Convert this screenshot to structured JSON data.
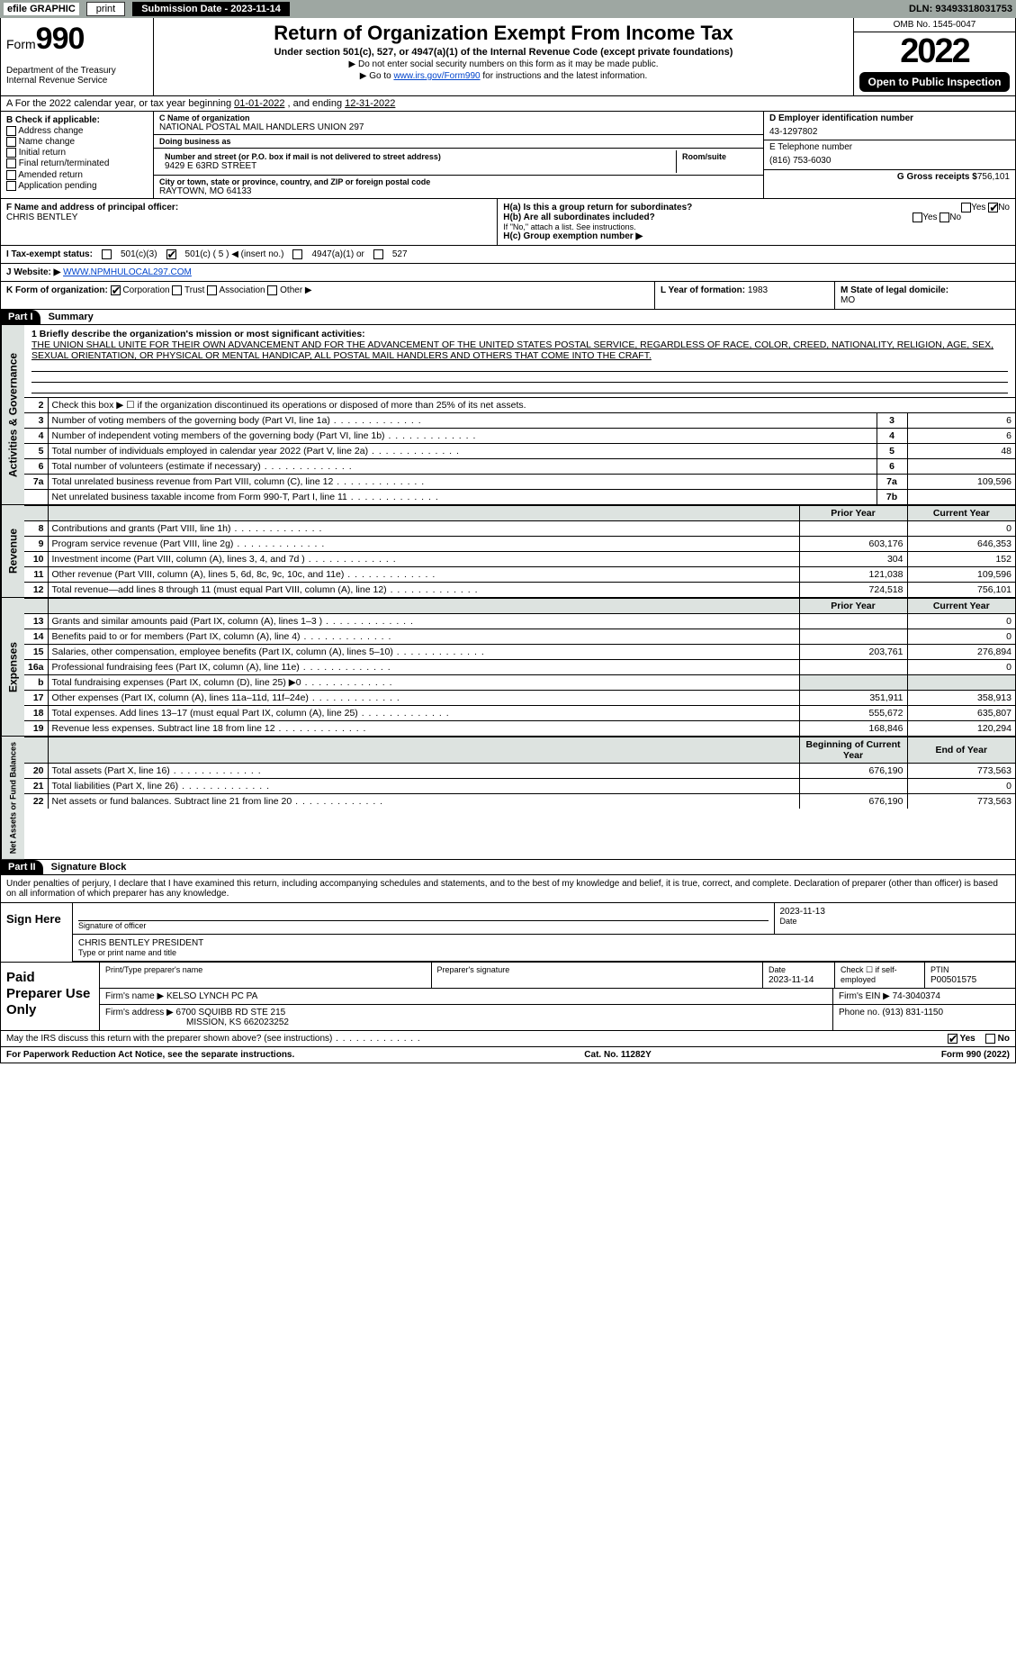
{
  "topbar": {
    "efile": "efile GRAPHIC",
    "print": "print",
    "submission": "Submission Date - 2023-11-14",
    "dln": "DLN: 93493318031753"
  },
  "header": {
    "form_prefix": "Form",
    "form_number": "990",
    "title": "Return of Organization Exempt From Income Tax",
    "subtitle1": "Under section 501(c), 527, or 4947(a)(1) of the Internal Revenue Code (except private foundations)",
    "subtitle2": "▶ Do not enter social security numbers on this form as it may be made public.",
    "subtitle3_pre": "▶ Go to ",
    "subtitle3_link": "www.irs.gov/Form990",
    "subtitle3_post": " for instructions and the latest information.",
    "dept": "Department of the Treasury\nInternal Revenue Service",
    "omb": "OMB No. 1545-0047",
    "year": "2022",
    "open": "Open to Public Inspection"
  },
  "row_a": {
    "text_pre": "A For the 2022 calendar year, or tax year beginning ",
    "begin": "01-01-2022",
    "mid": " , and ending ",
    "end": "12-31-2022"
  },
  "col_b": {
    "header": "B Check if applicable:",
    "items": [
      "Address change",
      "Name change",
      "Initial return",
      "Final return/terminated",
      "Amended return",
      "Application pending"
    ]
  },
  "col_c": {
    "c_label": "C Name of organization",
    "org_name": "NATIONAL POSTAL MAIL HANDLERS UNION 297",
    "dba_label": "Doing business as",
    "dba": "",
    "addr_label": "Number and street (or P.O. box if mail is not delivered to street address)",
    "room_label": "Room/suite",
    "street": "9429 E 63RD STREET",
    "city_label": "City or town, state or province, country, and ZIP or foreign postal code",
    "city": "RAYTOWN, MO  64133"
  },
  "col_de": {
    "d_label": "D Employer identification number",
    "ein": "43-1297802",
    "e_label": "E Telephone number",
    "phone": "(816) 753-6030",
    "g_label": "G Gross receipts $",
    "gross": "756,101"
  },
  "row_f": {
    "label": "F Name and address of principal officer:",
    "name": "CHRIS BENTLEY"
  },
  "row_h": {
    "a_label": "H(a) Is this a group return for subordinates?",
    "a_yes": "Yes",
    "a_no": "No",
    "b_label": "H(b) Are all subordinates included?",
    "b_note": "If \"No,\" attach a list. See instructions.",
    "c_label": "H(c) Group exemption number ▶"
  },
  "row_i": {
    "label": "I Tax-exempt status:",
    "opt1": "501(c)(3)",
    "opt2": "501(c) ( 5 ) ◀ (insert no.)",
    "opt3": "4947(a)(1) or",
    "opt4": "527"
  },
  "row_j": {
    "label": "J Website: ▶",
    "url": "WWW.NPMHULOCAL297.COM"
  },
  "row_k": {
    "label": "K Form of organization:",
    "opts": [
      "Corporation",
      "Trust",
      "Association",
      "Other ▶"
    ]
  },
  "row_l": {
    "label": "L Year of formation:",
    "val": "1983"
  },
  "row_m": {
    "label": "M State of legal domicile:",
    "val": "MO"
  },
  "part1": {
    "tag": "Part I",
    "title": "Summary",
    "side_gov": "Activities & Governance",
    "side_rev": "Revenue",
    "side_exp": "Expenses",
    "side_net": "Net Assets or Fund Balances",
    "line1_label": "1 Briefly describe the organization's mission or most significant activities:",
    "line1_text": "THE UNION SHALL UNITE FOR THEIR OWN ADVANCEMENT AND FOR THE ADVANCEMENT OF THE UNITED STATES POSTAL SERVICE, REGARDLESS OF RACE, COLOR, CREED, NATIONALITY, RELIGION, AGE, SEX, SEXUAL ORIENTATION, OR PHYSICAL OR MENTAL HANDICAP, ALL POSTAL MAIL HANDLERS AND OTHERS THAT COME INTO THE CRAFT.",
    "line2": "Check this box ▶ ☐ if the organization discontinued its operations or disposed of more than 25% of its net assets.",
    "lines_gov": [
      {
        "n": "3",
        "t": "Number of voting members of the governing body (Part VI, line 1a)",
        "b": "3",
        "v": "6"
      },
      {
        "n": "4",
        "t": "Number of independent voting members of the governing body (Part VI, line 1b)",
        "b": "4",
        "v": "6"
      },
      {
        "n": "5",
        "t": "Total number of individuals employed in calendar year 2022 (Part V, line 2a)",
        "b": "5",
        "v": "48"
      },
      {
        "n": "6",
        "t": "Total number of volunteers (estimate if necessary)",
        "b": "6",
        "v": ""
      },
      {
        "n": "7a",
        "t": "Total unrelated business revenue from Part VIII, column (C), line 12",
        "b": "7a",
        "v": "109,596"
      },
      {
        "n": "",
        "t": "Net unrelated business taxable income from Form 990-T, Part I, line 11",
        "b": "7b",
        "v": ""
      }
    ],
    "col_prior": "Prior Year",
    "col_current": "Current Year",
    "lines_rev": [
      {
        "n": "8",
        "t": "Contributions and grants (Part VIII, line 1h)",
        "p": "",
        "c": "0"
      },
      {
        "n": "9",
        "t": "Program service revenue (Part VIII, line 2g)",
        "p": "603,176",
        "c": "646,353"
      },
      {
        "n": "10",
        "t": "Investment income (Part VIII, column (A), lines 3, 4, and 7d )",
        "p": "304",
        "c": "152"
      },
      {
        "n": "11",
        "t": "Other revenue (Part VIII, column (A), lines 5, 6d, 8c, 9c, 10c, and 11e)",
        "p": "121,038",
        "c": "109,596"
      },
      {
        "n": "12",
        "t": "Total revenue—add lines 8 through 11 (must equal Part VIII, column (A), line 12)",
        "p": "724,518",
        "c": "756,101"
      }
    ],
    "lines_exp": [
      {
        "n": "13",
        "t": "Grants and similar amounts paid (Part IX, column (A), lines 1–3 )",
        "p": "",
        "c": "0"
      },
      {
        "n": "14",
        "t": "Benefits paid to or for members (Part IX, column (A), line 4)",
        "p": "",
        "c": "0"
      },
      {
        "n": "15",
        "t": "Salaries, other compensation, employee benefits (Part IX, column (A), lines 5–10)",
        "p": "203,761",
        "c": "276,894"
      },
      {
        "n": "16a",
        "t": "Professional fundraising fees (Part IX, column (A), line 11e)",
        "p": "",
        "c": "0"
      },
      {
        "n": "b",
        "t": "Total fundraising expenses (Part IX, column (D), line 25) ▶0",
        "p": "—shade—",
        "c": "—shade—"
      },
      {
        "n": "17",
        "t": "Other expenses (Part IX, column (A), lines 11a–11d, 11f–24e)",
        "p": "351,911",
        "c": "358,913"
      },
      {
        "n": "18",
        "t": "Total expenses. Add lines 13–17 (must equal Part IX, column (A), line 25)",
        "p": "555,672",
        "c": "635,807"
      },
      {
        "n": "19",
        "t": "Revenue less expenses. Subtract line 18 from line 12",
        "p": "168,846",
        "c": "120,294"
      }
    ],
    "col_begin": "Beginning of Current Year",
    "col_end": "End of Year",
    "lines_net": [
      {
        "n": "20",
        "t": "Total assets (Part X, line 16)",
        "p": "676,190",
        "c": "773,563"
      },
      {
        "n": "21",
        "t": "Total liabilities (Part X, line 26)",
        "p": "",
        "c": "0"
      },
      {
        "n": "22",
        "t": "Net assets or fund balances. Subtract line 21 from line 20",
        "p": "676,190",
        "c": "773,563"
      }
    ]
  },
  "part2": {
    "tag": "Part II",
    "title": "Signature Block",
    "declare": "Under penalties of perjury, I declare that I have examined this return, including accompanying schedules and statements, and to the best of my knowledge and belief, it is true, correct, and complete. Declaration of preparer (other than officer) is based on all information of which preparer has any knowledge.",
    "sign_here": "Sign Here",
    "sig_label": "Signature of officer",
    "date_label": "Date",
    "sig_date": "2023-11-13",
    "name_typed": "CHRIS BENTLEY PRESIDENT",
    "name_label": "Type or print name and title",
    "paid": "Paid Preparer Use Only",
    "prep_name_label": "Print/Type preparer's name",
    "prep_sig_label": "Preparer's signature",
    "prep_date_label": "Date",
    "prep_date": "2023-11-14",
    "self_emp": "Check ☐ if self-employed",
    "ptin_label": "PTIN",
    "ptin": "P00501575",
    "firm_name_label": "Firm's name ▶",
    "firm_name": "KELSO LYNCH PC PA",
    "firm_ein_label": "Firm's EIN ▶",
    "firm_ein": "74-3040374",
    "firm_addr_label": "Firm's address ▶",
    "firm_addr": "6700 SQUIBB RD STE 215",
    "firm_city": "MISSION, KS  662023252",
    "firm_phone_label": "Phone no.",
    "firm_phone": "(913) 831-1150",
    "may_irs": "May the IRS discuss this return with the preparer shown above? (see instructions)",
    "yes": "Yes",
    "no": "No"
  },
  "footer": {
    "pra": "For Paperwork Reduction Act Notice, see the separate instructions.",
    "cat": "Cat. No. 11282Y",
    "form": "Form 990 (2022)"
  },
  "colors": {
    "topbar_bg": "#9ea7a2",
    "shade_bg": "#dde3e0",
    "link": "#0044cc"
  }
}
